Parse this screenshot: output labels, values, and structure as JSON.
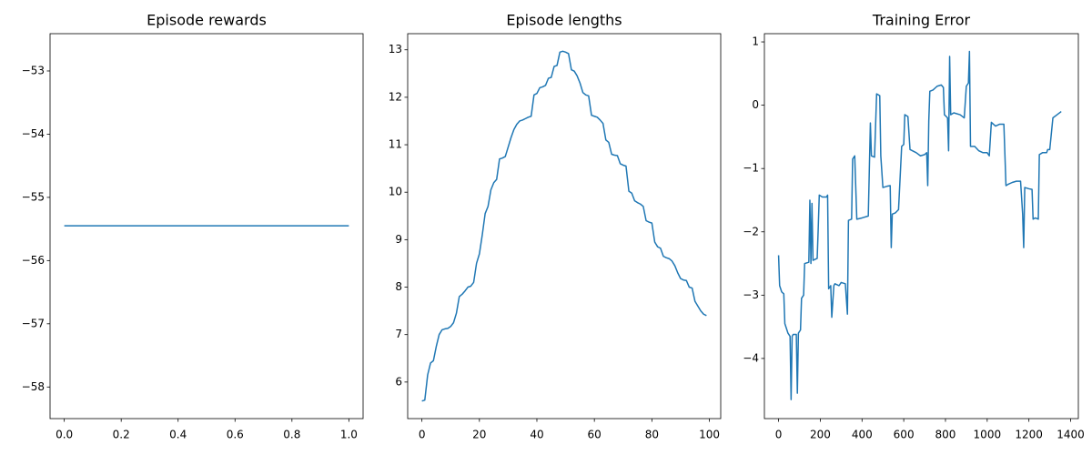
{
  "chart_data": [
    {
      "type": "line",
      "title": "Episode rewards",
      "color": "#1f77b4",
      "x": [
        0,
        1
      ],
      "values": [
        -55.45,
        -55.45
      ],
      "xlim": [
        -0.05,
        1.05
      ],
      "ylim": [
        -58.5,
        -52.41
      ],
      "xticks": [
        {
          "value": 0,
          "label": "0.0"
        },
        0.2,
        0.4,
        0.6,
        0.8,
        {
          "value": 1,
          "label": "1.0"
        }
      ],
      "yticks": [
        {
          "value": -58,
          "label": "−58"
        },
        {
          "value": -57,
          "label": "−57"
        },
        {
          "value": -56,
          "label": "−56"
        },
        {
          "value": -55,
          "label": "−55"
        },
        {
          "value": -54,
          "label": "−54"
        },
        {
          "value": -53,
          "label": "−53"
        }
      ]
    },
    {
      "type": "line",
      "title": "Episode lengths",
      "color": "#1f77b4",
      "x": [
        0,
        1,
        2,
        3,
        4,
        5,
        6,
        7,
        8,
        9,
        10,
        11,
        12,
        13,
        14,
        15,
        16,
        17,
        18,
        19,
        20,
        21,
        22,
        23,
        24,
        25,
        26,
        27,
        28,
        29,
        30,
        31,
        32,
        33,
        34,
        35,
        36,
        37,
        38,
        39,
        40,
        41,
        42,
        43,
        44,
        45,
        46,
        47,
        48,
        49,
        50,
        51,
        52,
        53,
        54,
        55,
        56,
        57,
        58,
        59,
        60,
        61,
        62,
        63,
        64,
        65,
        66,
        67,
        68,
        69,
        70,
        71,
        72,
        73,
        74,
        75,
        76,
        77,
        78,
        79,
        80,
        81,
        82,
        83,
        84,
        85,
        86,
        87,
        88,
        89,
        90,
        91,
        92,
        93,
        94,
        95,
        96,
        97,
        98,
        99
      ],
      "values": [
        5.6,
        5.62,
        6.15,
        6.4,
        6.45,
        6.75,
        7.0,
        7.1,
        7.12,
        7.13,
        7.17,
        7.25,
        7.45,
        7.8,
        7.85,
        7.92,
        8.0,
        8.02,
        8.1,
        8.5,
        8.7,
        9.1,
        9.55,
        9.7,
        10.05,
        10.2,
        10.27,
        10.7,
        10.72,
        10.75,
        10.95,
        11.15,
        11.32,
        11.43,
        11.5,
        11.52,
        11.55,
        11.58,
        11.6,
        12.05,
        12.08,
        12.2,
        12.22,
        12.25,
        12.4,
        12.42,
        12.65,
        12.67,
        12.95,
        12.97,
        12.95,
        12.92,
        12.58,
        12.55,
        12.45,
        12.3,
        12.1,
        12.05,
        12.03,
        11.62,
        11.6,
        11.58,
        11.52,
        11.45,
        11.1,
        11.05,
        10.8,
        10.78,
        10.77,
        10.6,
        10.57,
        10.55,
        10.02,
        9.98,
        9.82,
        9.78,
        9.75,
        9.7,
        9.4,
        9.37,
        9.35,
        8.95,
        8.85,
        8.82,
        8.65,
        8.62,
        8.6,
        8.55,
        8.45,
        8.3,
        8.18,
        8.15,
        8.14,
        8.0,
        7.98,
        7.7,
        7.6,
        7.5,
        7.43,
        7.4
      ],
      "xlim": [
        -4.95,
        103.95
      ],
      "ylim": [
        5.23,
        13.34
      ],
      "xticks": [
        0,
        20,
        40,
        60,
        80,
        100
      ],
      "yticks": [
        6,
        7,
        8,
        9,
        10,
        11,
        12,
        13
      ]
    },
    {
      "type": "line",
      "title": "Training Error",
      "color": "#1f77b4",
      "x": [
        0,
        5,
        15,
        25,
        30,
        45,
        55,
        60,
        65,
        70,
        85,
        90,
        95,
        105,
        110,
        120,
        125,
        145,
        150,
        155,
        160,
        165,
        185,
        190,
        195,
        210,
        230,
        235,
        240,
        250,
        255,
        265,
        270,
        290,
        300,
        320,
        330,
        335,
        350,
        355,
        365,
        375,
        400,
        430,
        440,
        445,
        460,
        470,
        485,
        490,
        500,
        520,
        535,
        540,
        545,
        560,
        575,
        590,
        600,
        605,
        620,
        630,
        660,
        680,
        700,
        710,
        715,
        720,
        725,
        740,
        760,
        780,
        790,
        795,
        810,
        815,
        820,
        825,
        840,
        870,
        890,
        900,
        910,
        915,
        920,
        940,
        960,
        980,
        1000,
        1010,
        1020,
        1040,
        1060,
        1080,
        1090,
        1100,
        1120,
        1140,
        1160,
        1170,
        1175,
        1180,
        1200,
        1215,
        1220,
        1230,
        1245,
        1250,
        1265,
        1285,
        1290,
        1300,
        1315,
        1335,
        1355
      ],
      "values": [
        -2.37,
        -2.85,
        -2.95,
        -2.98,
        -3.45,
        -3.6,
        -3.65,
        -4.65,
        -3.65,
        -3.62,
        -3.62,
        -4.55,
        -3.6,
        -3.55,
        -3.05,
        -3.0,
        -2.5,
        -2.48,
        -1.5,
        -2.5,
        -1.55,
        -2.45,
        -2.42,
        -1.95,
        -1.42,
        -1.45,
        -1.45,
        -1.42,
        -2.9,
        -2.85,
        -3.35,
        -2.85,
        -2.82,
        -2.85,
        -2.8,
        -2.82,
        -3.3,
        -1.82,
        -1.8,
        -0.85,
        -0.8,
        -1.8,
        -1.78,
        -1.75,
        -0.28,
        -0.8,
        -0.82,
        0.18,
        0.15,
        -0.8,
        -1.3,
        -1.28,
        -1.27,
        -2.25,
        -1.72,
        -1.7,
        -1.65,
        -0.65,
        -0.62,
        -0.15,
        -0.18,
        -0.7,
        -0.75,
        -0.8,
        -0.78,
        -0.75,
        -1.27,
        -0.25,
        0.22,
        0.24,
        0.3,
        0.32,
        0.28,
        -0.15,
        -0.2,
        -0.72,
        0.77,
        -0.15,
        -0.12,
        -0.15,
        -0.2,
        0.3,
        0.35,
        0.85,
        -0.65,
        -0.65,
        -0.72,
        -0.75,
        -0.75,
        -0.8,
        -0.27,
        -0.33,
        -0.3,
        -0.3,
        -1.27,
        -1.25,
        -1.22,
        -1.2,
        -1.2,
        -1.72,
        -2.25,
        -1.3,
        -1.32,
        -1.33,
        -1.8,
        -1.78,
        -1.8,
        -0.78,
        -0.75,
        -0.75,
        -0.7,
        -0.7,
        -0.2,
        -0.15,
        -0.1
      ],
      "xlim": [
        -68,
        1437
      ],
      "ylim": [
        -4.95,
        1.13
      ],
      "xticks": [
        0,
        200,
        400,
        600,
        800,
        1000,
        1200,
        1400
      ],
      "yticks": [
        {
          "value": -4,
          "label": "−4"
        },
        {
          "value": -3,
          "label": "−3"
        },
        {
          "value": -2,
          "label": "−2"
        },
        {
          "value": -1,
          "label": "−1"
        },
        0,
        1
      ]
    }
  ]
}
